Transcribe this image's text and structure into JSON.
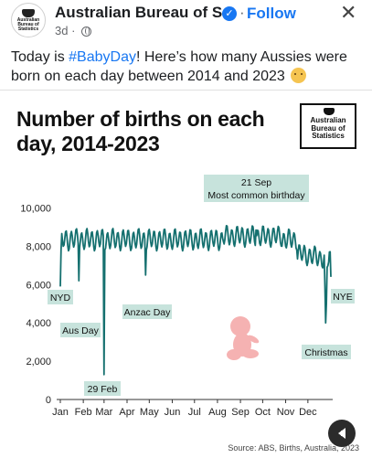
{
  "post": {
    "page_name": "Australian Bureau of S...",
    "follow_label": "Follow",
    "time": "3d",
    "text_before": "Today is ",
    "hashtag": "#BabyDay",
    "text_after": "! Here’s how many Aussies were born on each day between 2014 and 2023",
    "close_icon": "close-icon",
    "logo_text": "Australian Bureau of Statistics"
  },
  "chart_data": {
    "type": "line",
    "title": "Number of births on each day, 2014-2023",
    "xlabel": "",
    "ylabel": "",
    "x_ticks": [
      "Jan",
      "Feb",
      "Mar",
      "Apr",
      "May",
      "Jun",
      "Jul",
      "Aug",
      "Sep",
      "Oct",
      "Nov",
      "Dec"
    ],
    "y_ticks": [
      "0",
      "2,000",
      "4,000",
      "6,000",
      "8,000",
      "10,000"
    ],
    "ylim": [
      0,
      10500
    ],
    "grid": false,
    "line_color": "#15706f",
    "annotations": [
      {
        "text": "NYD",
        "day": 1,
        "value": 5900
      },
      {
        "text": "Aus Day",
        "day": 26,
        "value": 6200
      },
      {
        "text": "29 Feb",
        "day": 60,
        "value": 1300
      },
      {
        "text": "Anzac Day",
        "day": 116,
        "value": 6500
      },
      {
        "text": "21 Sep",
        "text2": "Most common birthday",
        "day": 265,
        "value": 8850
      },
      {
        "text": "Christmas",
        "day": 359,
        "value": 4000
      },
      {
        "text": "NYE",
        "day": 366,
        "value": 6400
      }
    ],
    "source": "Source: ABS, Births, Australia, 2023"
  }
}
